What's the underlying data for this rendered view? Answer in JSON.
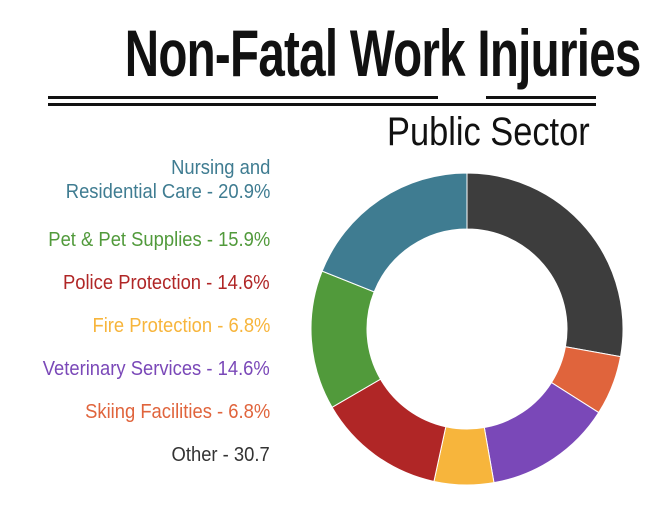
{
  "chart_data": {
    "type": "pie",
    "title": "Non-Fatal Work Injuries",
    "subtitle": "Public Sector",
    "legend_placement": "left",
    "donut": true,
    "series": [
      {
        "name": "Nursing and Residential Care",
        "value": 20.9,
        "legend_lines": [
          "Nursing and",
          "Residential Care - 20.9%"
        ],
        "color": "#3f7c91"
      },
      {
        "name": "Pet & Pet Supplies",
        "value": 15.9,
        "legend_lines": [
          "Pet & Pet Supplies - 15.9%"
        ],
        "color": "#519a3b"
      },
      {
        "name": "Police Protection",
        "value": 14.6,
        "legend_lines": [
          "Police Protection - 14.6%"
        ],
        "color": "#b02626"
      },
      {
        "name": "Fire Protection",
        "value": 6.8,
        "legend_lines": [
          "Fire Protection - 6.8%"
        ],
        "color": "#f7b53c"
      },
      {
        "name": "Veterinary Services",
        "value": 14.6,
        "legend_lines": [
          "Veterinary Services - 14.6%"
        ],
        "color": "#7a48b8"
      },
      {
        "name": "Skiing Facilities",
        "value": 6.8,
        "legend_lines": [
          "Skiing Facilities - 6.8%"
        ],
        "color": "#e0643c"
      },
      {
        "name": "Other",
        "value": 30.7,
        "legend_lines": [
          "Other - 30.7"
        ],
        "color": "#3d3d3d"
      }
    ]
  }
}
